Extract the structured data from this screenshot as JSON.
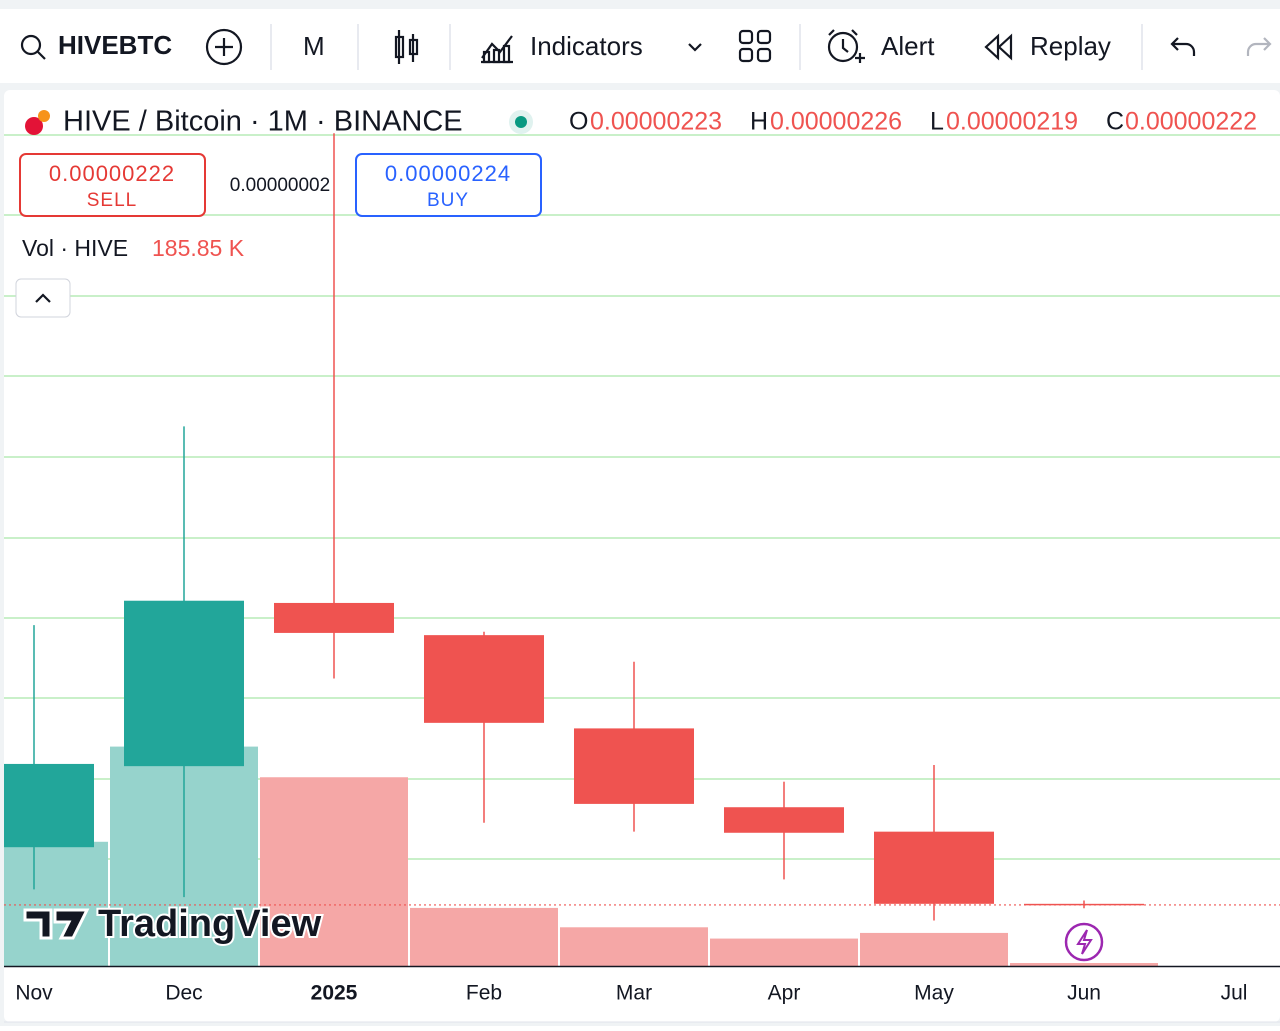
{
  "toolbar": {
    "symbol": "HIVEBTC",
    "interval": "M",
    "indicators": "Indicators",
    "alert": "Alert",
    "replay": "Replay"
  },
  "legend": {
    "title": "HIVE / Bitcoin · 1M · BINANCE",
    "o": "O",
    "o_value": "0.00000223",
    "h": "H",
    "h_value": "0.00000226",
    "l": "L",
    "l_value": "0.00000219",
    "c": "C",
    "c_value": "0.00000222"
  },
  "trade": {
    "sell_price": "0.00000222",
    "sell": "SELL",
    "spread": "0.00000002",
    "buy_price": "0.00000224",
    "buy": "BUY"
  },
  "volume_legend": {
    "label": "Vol · HIVE",
    "value": "185.85 K"
  },
  "watermark": "TradingView",
  "chart_data": {
    "type": "candlestick",
    "categories": [
      "Nov",
      "Dec",
      "2025",
      "Feb",
      "Mar",
      "Apr",
      "May",
      "Jun",
      "Jul"
    ],
    "open": [
      2.74e-06,
      3.47e-06,
      4.94e-06,
      4.65e-06,
      3.81e-06,
      3.1e-06,
      2.88e-06,
      2.23e-06,
      null
    ],
    "high": [
      4.74e-06,
      6.53e-06,
      9.17e-06,
      4.68e-06,
      4.41e-06,
      3.33e-06,
      3.48e-06,
      2.26e-06,
      null
    ],
    "low": [
      2.36e-06,
      2.29e-06,
      4.26e-06,
      2.96e-06,
      2.88e-06,
      2.45e-06,
      2.08e-06,
      2.19e-06,
      null
    ],
    "close": [
      3.49e-06,
      4.96e-06,
      4.67e-06,
      3.86e-06,
      3.13e-06,
      2.87e-06,
      2.23e-06,
      2.22e-06,
      null
    ],
    "volume": [
      7700000,
      13600000,
      11700000,
      3600000,
      2400000,
      1700000,
      2050000,
      185850,
      null
    ],
    "up_color": "#22a69a",
    "down_color": "#ef5350",
    "up_volume_color": "#96d3cc",
    "down_volume_color": "#f5a7a6",
    "ylim": [
      1.67e-06,
      9.56e-06
    ],
    "volume_ylim": [
      0,
      54300000
    ]
  }
}
